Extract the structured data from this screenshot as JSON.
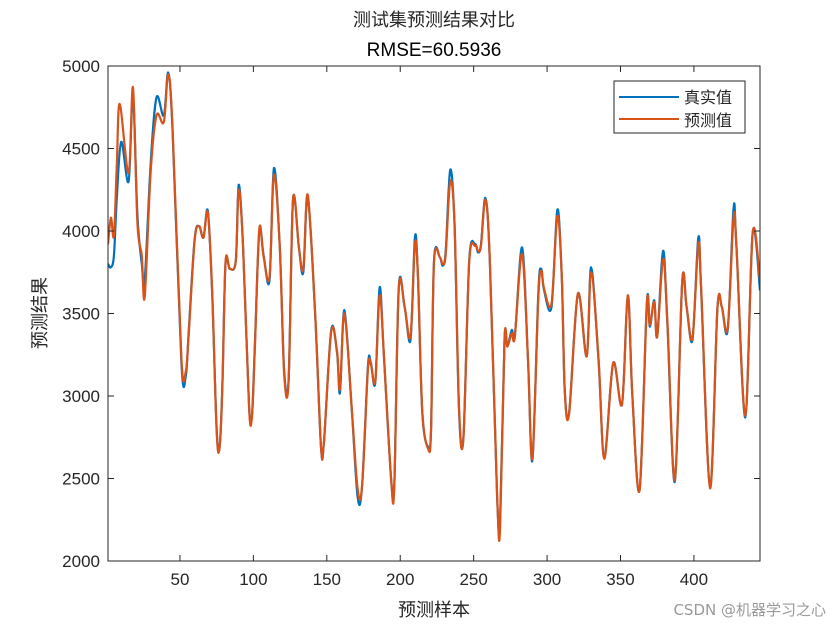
{
  "chart_data": {
    "type": "line",
    "title": "测试集预测结果对比",
    "subtitle": "RMSE=60.5936",
    "xlabel": "预测样本",
    "ylabel": "预测结果",
    "xlim": [
      1,
      445
    ],
    "ylim": [
      2000,
      5000
    ],
    "xticks": [
      50,
      100,
      150,
      200,
      250,
      300,
      350,
      400
    ],
    "yticks": [
      2000,
      2500,
      3000,
      3500,
      4000,
      4500,
      5000
    ],
    "grid": false,
    "legend_position": "top-right",
    "series": [
      {
        "name": "真实值",
        "color": "#0072BD",
        "x": [
          1,
          3,
          5,
          7,
          10,
          15,
          18,
          21,
          24,
          26,
          30,
          34,
          39,
          42,
          45,
          51,
          54,
          56,
          60,
          63,
          66,
          69,
          72,
          75,
          77,
          79,
          81,
          84,
          88,
          90,
          93,
          97,
          99,
          101,
          104,
          107,
          111,
          114,
          118,
          121,
          124,
          127,
          131,
          134,
          137,
          142,
          146,
          148,
          153,
          157,
          159,
          162,
          167,
          171,
          174,
          178,
          180,
          183,
          186,
          189,
          194,
          196,
          199,
          203,
          207,
          210,
          212,
          215,
          219,
          221,
          223,
          227,
          229,
          231,
          234,
          237,
          240,
          243,
          247,
          251,
          253,
          255,
          258,
          261,
          266,
          268,
          271,
          273,
          276,
          278,
          283,
          287,
          290,
          294,
          296,
          298,
          303,
          307,
          310,
          312,
          315,
          321,
          327,
          330,
          335,
          339,
          345,
          351,
          355,
          358,
          363,
          368,
          370,
          373,
          375,
          379,
          382,
          387,
          392,
          395,
          399,
          403,
          405,
          411,
          416,
          419,
          423,
          427,
          429,
          435,
          440,
          445
        ],
        "y": [
          3800,
          3780,
          3850,
          4200,
          4540,
          4300,
          4820,
          4100,
          3800,
          3700,
          4400,
          4810,
          4700,
          4960,
          4600,
          3200,
          3120,
          3400,
          3950,
          4030,
          3960,
          4120,
          3600,
          2800,
          2690,
          3100,
          3800,
          3770,
          3820,
          4280,
          3900,
          2950,
          2880,
          3300,
          4000,
          3850,
          3700,
          4380,
          3900,
          3150,
          3100,
          4190,
          3900,
          3750,
          4210,
          3500,
          2700,
          2715,
          3400,
          3260,
          3020,
          3520,
          2915,
          2390,
          2450,
          3180,
          3200,
          3080,
          3660,
          3220,
          2475,
          2480,
          3660,
          3540,
          3340,
          3960,
          3745,
          2900,
          2690,
          2810,
          3820,
          3840,
          3790,
          3880,
          4370,
          4030,
          2915,
          2750,
          3820,
          3920,
          3870,
          3920,
          4200,
          3820,
          2390,
          2250,
          3340,
          3300,
          3400,
          3360,
          3900,
          3220,
          2610,
          3620,
          3770,
          3640,
          3540,
          4130,
          3720,
          3040,
          2900,
          3620,
          3240,
          3780,
          3220,
          2630,
          3200,
          2950,
          3610,
          3020,
          2430,
          3570,
          3420,
          3580,
          3360,
          3880,
          3420,
          2480,
          3690,
          3540,
          3340,
          3960,
          3620,
          2450,
          3530,
          3540,
          3400,
          4140,
          3900,
          2870,
          3990,
          3640
        ]
      },
      {
        "name": "预测值",
        "color": "#D95319",
        "x": [
          1,
          3,
          5,
          7,
          9,
          15,
          18,
          21,
          24,
          26,
          30,
          34,
          39,
          42,
          45,
          51,
          54,
          56,
          60,
          63,
          66,
          69,
          72,
          75,
          77,
          79,
          81,
          84,
          88,
          90,
          93,
          97,
          99,
          101,
          104,
          107,
          111,
          114,
          118,
          121,
          124,
          127,
          131,
          134,
          137,
          142,
          146,
          148,
          153,
          157,
          159,
          162,
          167,
          171,
          174,
          178,
          180,
          183,
          186,
          189,
          194,
          196,
          199,
          203,
          207,
          210,
          212,
          215,
          219,
          221,
          223,
          227,
          229,
          231,
          234,
          237,
          240,
          243,
          247,
          251,
          253,
          255,
          258,
          261,
          266,
          268,
          271,
          273,
          276,
          278,
          283,
          287,
          290,
          294,
          296,
          298,
          303,
          307,
          310,
          312,
          315,
          321,
          327,
          330,
          335,
          339,
          345,
          351,
          355,
          358,
          363,
          368,
          370,
          373,
          375,
          379,
          382,
          387,
          392,
          395,
          399,
          403,
          405,
          411,
          416,
          419,
          423,
          427,
          429,
          435,
          440,
          445
        ],
        "y": [
          3920,
          4080,
          3970,
          4400,
          4770,
          4350,
          4870,
          4050,
          3850,
          3600,
          4350,
          4700,
          4660,
          4950,
          4620,
          3230,
          3150,
          3380,
          3940,
          4030,
          3960,
          4110,
          3620,
          2780,
          2690,
          3080,
          3810,
          3770,
          3820,
          4250,
          3900,
          2940,
          2870,
          3280,
          4010,
          3840,
          3720,
          4340,
          3900,
          3130,
          3090,
          4190,
          3900,
          3770,
          4220,
          3510,
          2700,
          2720,
          3390,
          3270,
          3040,
          3500,
          2920,
          2440,
          2450,
          3160,
          3190,
          3090,
          3610,
          3230,
          2470,
          2470,
          3650,
          3540,
          3360,
          3920,
          3750,
          2910,
          2680,
          2800,
          3810,
          3840,
          3800,
          3860,
          4300,
          4040,
          2940,
          2740,
          3810,
          3910,
          3880,
          3910,
          4190,
          3830,
          2400,
          2200,
          3340,
          3300,
          3380,
          3360,
          3860,
          3220,
          2620,
          3590,
          3760,
          3650,
          3560,
          4090,
          3720,
          3040,
          2890,
          3620,
          3240,
          3750,
          3230,
          2620,
          3200,
          2950,
          3610,
          3020,
          2430,
          3560,
          3430,
          3570,
          3360,
          3830,
          3440,
          2490,
          3690,
          3540,
          3350,
          3920,
          3640,
          2440,
          3530,
          3540,
          3410,
          4080,
          3900,
          2880,
          3990,
          3700
        ]
      }
    ]
  },
  "watermark": "CSDN @机器学习之心"
}
